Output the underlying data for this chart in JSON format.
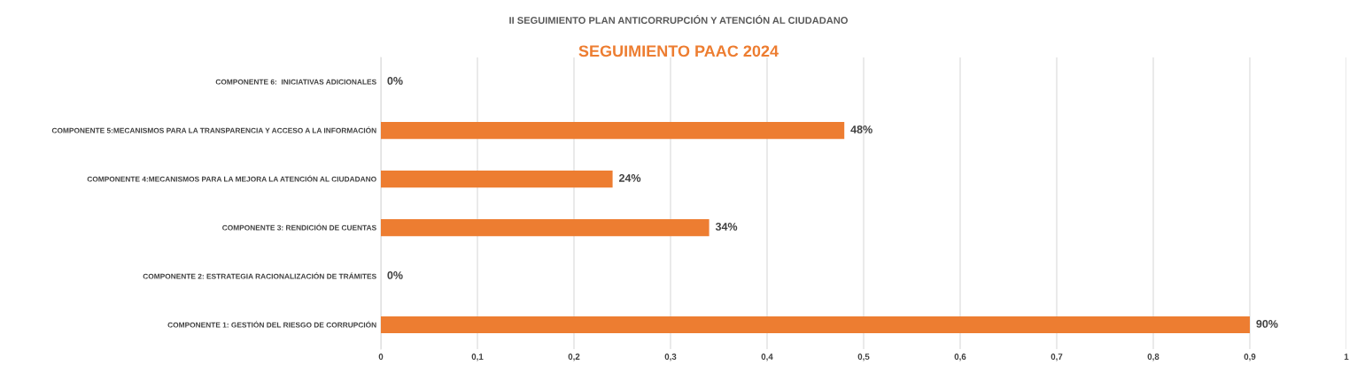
{
  "chart_data": {
    "type": "bar",
    "orientation": "horizontal",
    "title": "II SEGUIMIENTO PLAN ANTICORRUPCIÓN Y ATENCIÓN AL CIUDADANO",
    "subtitle": "SEGUIMIENTO PAAC 2024",
    "categories": [
      "COMPONENTE 6:  INICIATIVAS ADICIONALES",
      "COMPONENTE 5:MECANISMOS PARA LA TRANSPARENCIA Y ACCESO A LA INFORMACIÓN",
      "COMPONENTE 4:MECANISMOS PARA LA MEJORA LA ATENCIÓN AL CIUDADANO",
      "COMPONENTE 3: RENDICIÓN DE CUENTAS",
      "COMPONENTE 2: ESTRATEGIA RACIONALIZACIÓN DE TRÁMITES",
      "COMPONENTE 1: GESTIÓN DEL RIESGO DE CORRUPCIÓN"
    ],
    "values": [
      0,
      0.48,
      0.24,
      0.34,
      0,
      0.9
    ],
    "value_labels": [
      "0%",
      "48%",
      "24%",
      "34%",
      "0%",
      "90%"
    ],
    "color": "#ed7d31",
    "xlim": [
      0,
      1
    ],
    "xticks": [
      0,
      {
        "value": 0.1,
        "label": "0,1"
      },
      {
        "value": 0.2,
        "label": "0,2"
      },
      {
        "value": 0.3,
        "label": "0,3"
      },
      {
        "value": 0.4,
        "label": "0,4"
      },
      {
        "value": 0.5,
        "label": "0,5"
      },
      {
        "value": 0.6,
        "label": "0,6"
      },
      {
        "value": 0.7,
        "label": "0,7"
      },
      {
        "value": 0.8,
        "label": "0,8"
      },
      {
        "value": 0.9,
        "label": "0,9"
      },
      1
    ],
    "grid": "x",
    "legend": false
  }
}
